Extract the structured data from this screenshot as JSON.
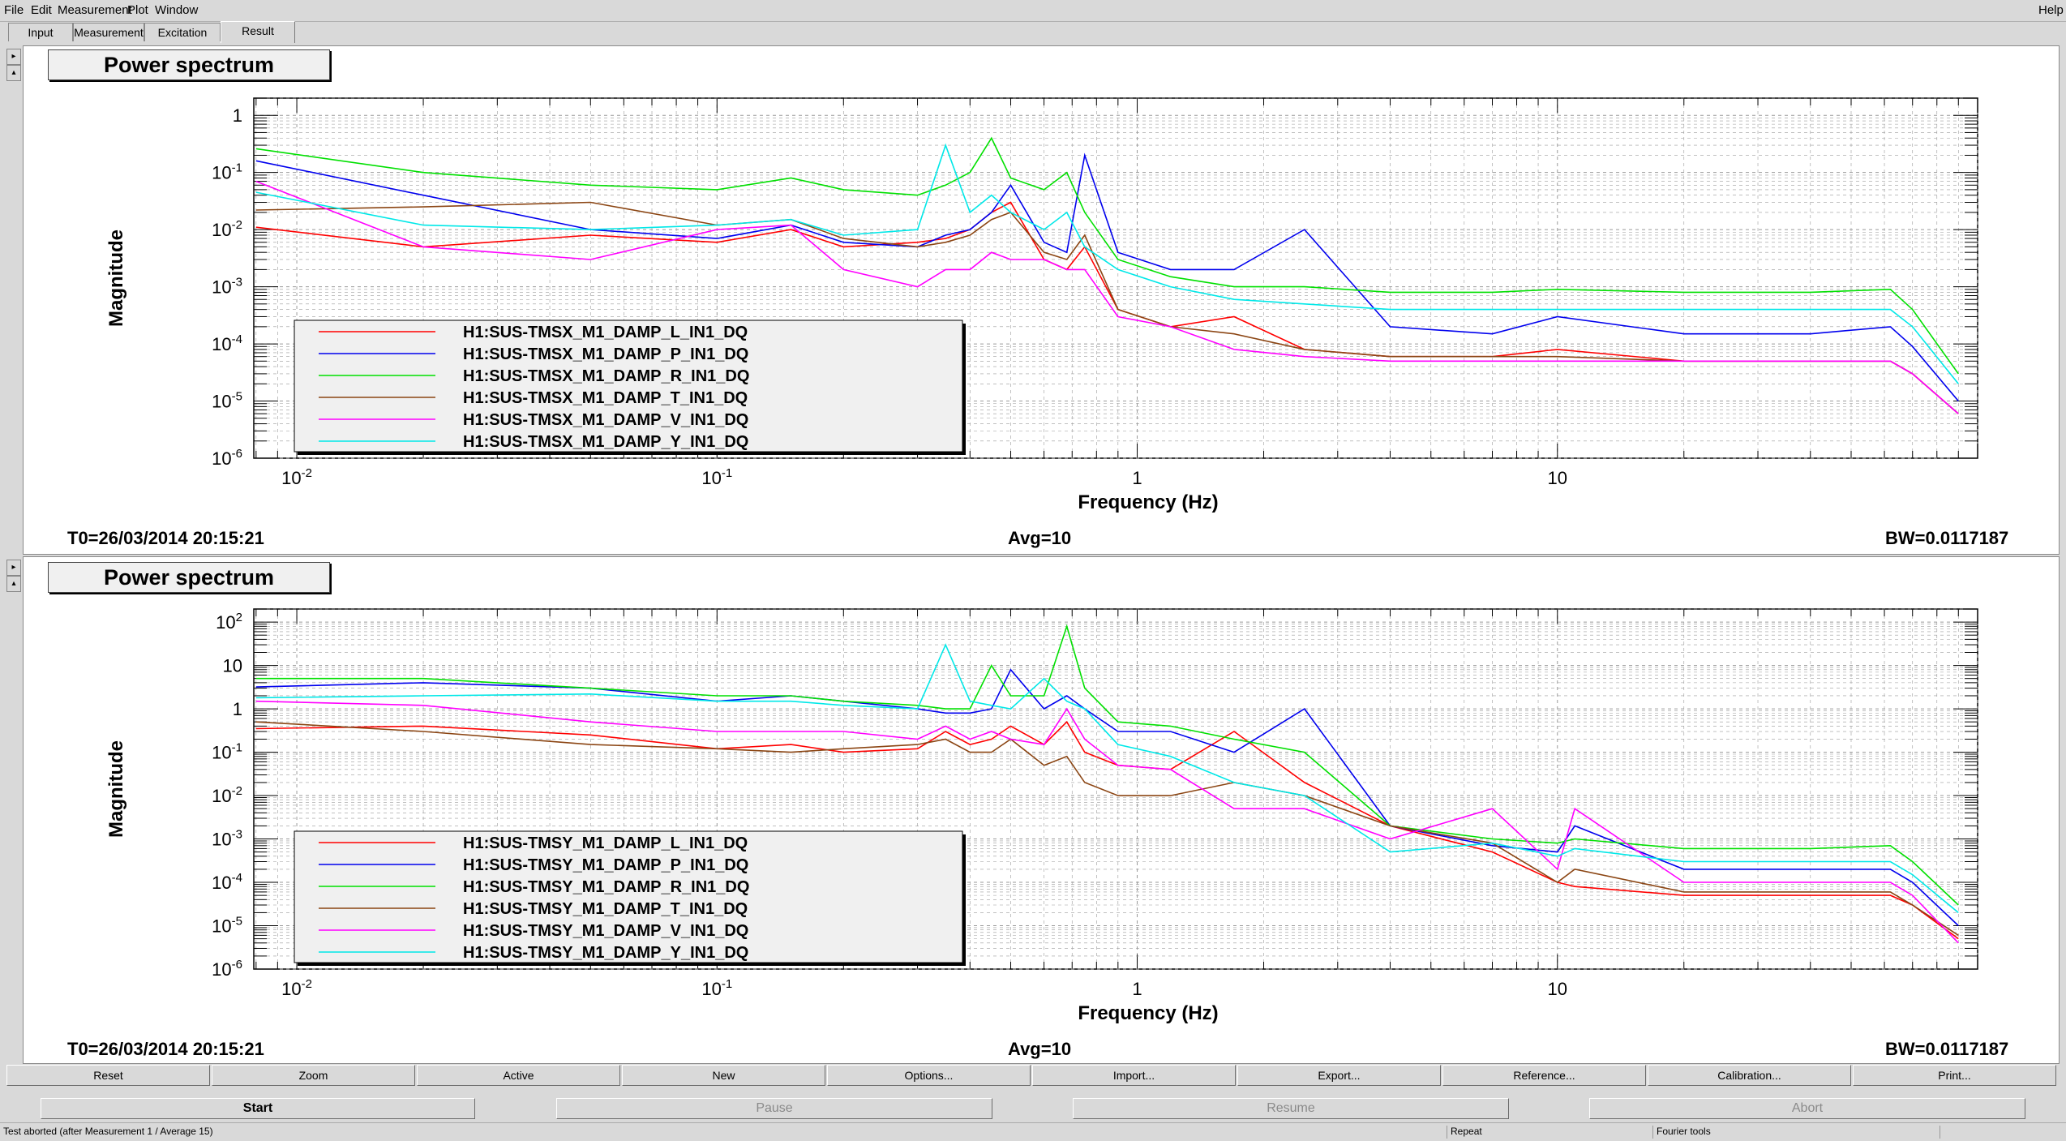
{
  "menu": {
    "file": "File",
    "edit": "Edit",
    "measurement": "Measurement",
    "plot": "Plot",
    "window": "Window",
    "help": "Help"
  },
  "tabs": [
    "Input",
    "Measurement",
    "Excitation",
    "Result"
  ],
  "colors": {
    "L": "#ff0000",
    "P": "#0000ee",
    "R": "#00e000",
    "T": "#8b4513",
    "V": "#ff00ff",
    "Y": "#00e8e8"
  },
  "chart_data": [
    {
      "type": "line",
      "title": "Power spectrum",
      "xlabel": "Frequency (Hz)",
      "ylabel": "Magnitude",
      "xscale": "log",
      "yscale": "log",
      "xlim": [
        0.0079,
        100
      ],
      "ylim": [
        1e-06,
        2
      ],
      "xticks": [
        "10^-2",
        "10^-1",
        "1",
        "10"
      ],
      "yticks": [
        "1",
        "10^-1",
        "10^-2",
        "10^-3",
        "10^-4",
        "10^-5",
        "10^-6"
      ],
      "grid": true,
      "legend_position": "bottom-left",
      "x": [
        0.008,
        0.02,
        0.05,
        0.1,
        0.15,
        0.2,
        0.3,
        0.35,
        0.4,
        0.45,
        0.5,
        0.6,
        0.68,
        0.75,
        0.9,
        1.2,
        1.7,
        2.5,
        4,
        7,
        10,
        20,
        40,
        62,
        70,
        90
      ],
      "series": [
        {
          "name": "H1:SUS-TMSX_M1_DAMP_L_IN1_DQ",
          "key": "L",
          "values": [
            0.011,
            0.005,
            0.008,
            0.006,
            0.01,
            0.005,
            0.006,
            0.007,
            0.01,
            0.02,
            0.03,
            0.003,
            0.002,
            0.005,
            0.0004,
            0.0002,
            0.0003,
            8e-05,
            6e-05,
            6e-05,
            8e-05,
            5e-05,
            5e-05,
            5e-05,
            3e-05,
            6e-06
          ]
        },
        {
          "name": "H1:SUS-TMSX_M1_DAMP_P_IN1_DQ",
          "key": "P",
          "values": [
            0.16,
            0.04,
            0.01,
            0.007,
            0.012,
            0.006,
            0.005,
            0.008,
            0.01,
            0.02,
            0.06,
            0.006,
            0.004,
            0.2,
            0.004,
            0.002,
            0.002,
            0.01,
            0.0002,
            0.00015,
            0.0003,
            0.00015,
            0.00015,
            0.0002,
            9e-05,
            1e-05
          ]
        },
        {
          "name": "H1:SUS-TMSX_M1_DAMP_R_IN1_DQ",
          "key": "R",
          "values": [
            0.26,
            0.1,
            0.06,
            0.05,
            0.08,
            0.05,
            0.04,
            0.06,
            0.1,
            0.4,
            0.08,
            0.05,
            0.1,
            0.02,
            0.003,
            0.0015,
            0.001,
            0.001,
            0.0008,
            0.0008,
            0.0009,
            0.0008,
            0.0008,
            0.0009,
            0.0004,
            3e-05
          ]
        },
        {
          "name": "H1:SUS-TMSX_M1_DAMP_T_IN1_DQ",
          "key": "T",
          "values": [
            0.022,
            0.025,
            0.03,
            0.012,
            0.015,
            0.007,
            0.005,
            0.006,
            0.008,
            0.015,
            0.02,
            0.004,
            0.003,
            0.008,
            0.0004,
            0.0002,
            0.00015,
            8e-05,
            6e-05,
            6e-05,
            6e-05,
            5e-05,
            5e-05,
            5e-05,
            3e-05,
            6e-06
          ]
        },
        {
          "name": "H1:SUS-TMSX_M1_DAMP_V_IN1_DQ",
          "key": "V",
          "values": [
            0.07,
            0.005,
            0.003,
            0.01,
            0.012,
            0.002,
            0.001,
            0.002,
            0.002,
            0.004,
            0.003,
            0.003,
            0.002,
            0.002,
            0.0003,
            0.0002,
            8e-05,
            6e-05,
            5e-05,
            5e-05,
            5e-05,
            5e-05,
            5e-05,
            5e-05,
            3e-05,
            6e-06
          ]
        },
        {
          "name": "H1:SUS-TMSX_M1_DAMP_Y_IN1_DQ",
          "key": "Y",
          "values": [
            0.045,
            0.012,
            0.01,
            0.012,
            0.015,
            0.008,
            0.01,
            0.3,
            0.02,
            0.04,
            0.02,
            0.01,
            0.02,
            0.005,
            0.002,
            0.001,
            0.0006,
            0.0005,
            0.0004,
            0.0004,
            0.0004,
            0.0004,
            0.0004,
            0.0004,
            0.0002,
            2e-05
          ]
        }
      ],
      "t0": "T0=26/03/2014 20:15:21",
      "avg": "Avg=10",
      "bw": "BW=0.0117187"
    },
    {
      "type": "line",
      "title": "Power spectrum",
      "xlabel": "Frequency (Hz)",
      "ylabel": "Magnitude",
      "xscale": "log",
      "yscale": "log",
      "xlim": [
        0.0079,
        100
      ],
      "ylim": [
        1e-06,
        200
      ],
      "xticks": [
        "10^-2",
        "10^-1",
        "1",
        "10"
      ],
      "yticks": [
        "10^2",
        "10",
        "1",
        "10^-1",
        "10^-2",
        "10^-3",
        "10^-4",
        "10^-5",
        "10^-6"
      ],
      "grid": true,
      "legend_position": "bottom-left",
      "x": [
        0.008,
        0.02,
        0.05,
        0.1,
        0.15,
        0.2,
        0.3,
        0.35,
        0.4,
        0.45,
        0.5,
        0.6,
        0.68,
        0.75,
        0.9,
        1.2,
        1.7,
        2.5,
        4,
        7,
        10,
        11,
        20,
        40,
        62,
        70,
        90
      ],
      "series": [
        {
          "name": "H1:SUS-TMSY_M1_DAMP_L_IN1_DQ",
          "key": "L",
          "values": [
            0.35,
            0.4,
            0.25,
            0.12,
            0.15,
            0.1,
            0.12,
            0.3,
            0.15,
            0.2,
            0.4,
            0.15,
            0.5,
            0.1,
            0.05,
            0.04,
            0.3,
            0.02,
            0.002,
            0.0005,
            0.0001,
            8e-05,
            5e-05,
            5e-05,
            5e-05,
            3e-05,
            5e-06
          ]
        },
        {
          "name": "H1:SUS-TMSY_M1_DAMP_P_IN1_DQ",
          "key": "P",
          "values": [
            3.2,
            4,
            3,
            1.5,
            2,
            1.5,
            1,
            0.8,
            0.8,
            1,
            8,
            1,
            2,
            1,
            0.3,
            0.3,
            0.1,
            1,
            0.002,
            0.0007,
            0.0005,
            0.002,
            0.0002,
            0.0002,
            0.0002,
            0.0001,
            1e-05
          ]
        },
        {
          "name": "H1:SUS-TMSY_M1_DAMP_R_IN1_DQ",
          "key": "R",
          "values": [
            5,
            5,
            3,
            2,
            2,
            1.5,
            1.2,
            1,
            1,
            10,
            2,
            2,
            80,
            3,
            0.5,
            0.4,
            0.2,
            0.1,
            0.002,
            0.001,
            0.0008,
            0.001,
            0.0006,
            0.0006,
            0.0007,
            0.0003,
            3e-05
          ]
        },
        {
          "name": "H1:SUS-TMSY_M1_DAMP_T_IN1_DQ",
          "key": "T",
          "values": [
            0.5,
            0.3,
            0.15,
            0.12,
            0.1,
            0.12,
            0.15,
            0.2,
            0.1,
            0.1,
            0.2,
            0.05,
            0.08,
            0.02,
            0.01,
            0.01,
            0.02,
            0.01,
            0.002,
            0.0008,
            0.0001,
            0.0002,
            6e-05,
            6e-05,
            6e-05,
            3e-05,
            6e-06
          ]
        },
        {
          "name": "H1:SUS-TMSY_M1_DAMP_V_IN1_DQ",
          "key": "V",
          "values": [
            1.5,
            1.2,
            0.5,
            0.3,
            0.3,
            0.3,
            0.2,
            0.4,
            0.2,
            0.3,
            0.2,
            0.15,
            1,
            0.2,
            0.05,
            0.04,
            0.005,
            0.005,
            0.001,
            0.005,
            0.0002,
            0.005,
            0.0001,
            0.0001,
            0.0001,
            5e-05,
            4e-06
          ]
        },
        {
          "name": "H1:SUS-TMSY_M1_DAMP_Y_IN1_DQ",
          "key": "Y",
          "values": [
            1.8,
            2,
            2.2,
            1.5,
            1.5,
            1.2,
            1,
            30,
            1.5,
            1.2,
            1,
            5,
            1.5,
            1,
            0.15,
            0.08,
            0.02,
            0.01,
            0.0005,
            0.0008,
            0.0004,
            0.0006,
            0.0003,
            0.0003,
            0.0003,
            0.00015,
            2e-05
          ]
        }
      ],
      "t0": "T0=26/03/2014 20:15:21",
      "avg": "Avg=10",
      "bw": "BW=0.0117187"
    }
  ],
  "buttons_row1": [
    "Reset",
    "Zoom",
    "Active",
    "New",
    "Options...",
    "Import...",
    "Export...",
    "Reference...",
    "Calibration...",
    "Print..."
  ],
  "buttons_row2": [
    "Start",
    "Pause",
    "Resume",
    "Abort"
  ],
  "status": {
    "message": "Test aborted (after Measurement 1 / Average 15)",
    "repeat": "Repeat",
    "fourier": "Fourier tools"
  }
}
